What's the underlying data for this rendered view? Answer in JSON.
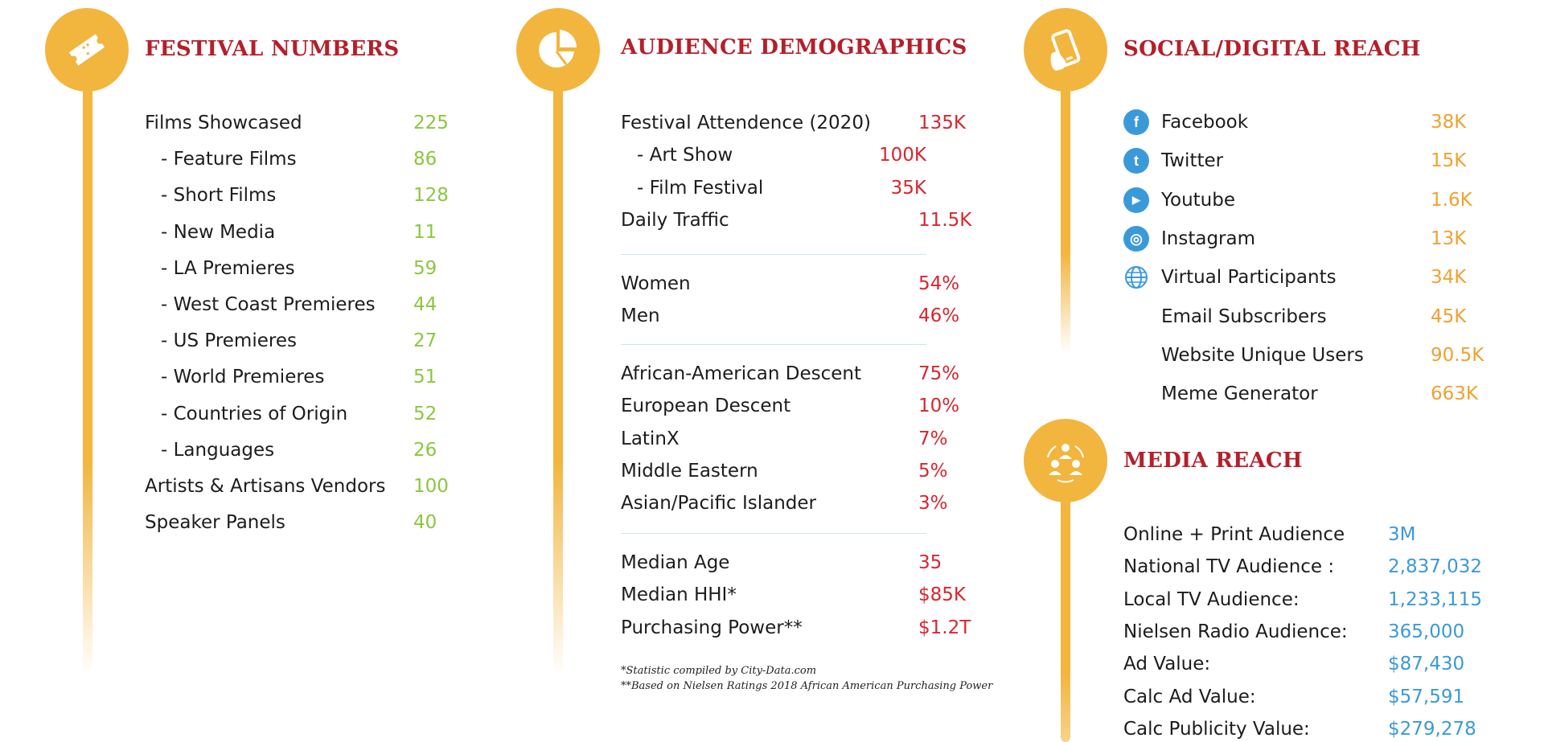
{
  "festival": {
    "title": "FESTIVAL NUMBERS",
    "rows": [
      {
        "label": "Films Showcased",
        "value": "225",
        "indent": false
      },
      {
        "label": "- Feature Films",
        "value": "86",
        "indent": true
      },
      {
        "label": "- Short Films",
        "value": "128",
        "indent": true
      },
      {
        "label": "- New Media",
        "value": "11",
        "indent": true
      },
      {
        "label": "- LA Premieres",
        "value": "59",
        "indent": true
      },
      {
        "label": "- West Coast Premieres",
        "value": "44",
        "indent": true
      },
      {
        "label": "- US Premieres",
        "value": "27",
        "indent": true
      },
      {
        "label": "- World Premieres",
        "value": "51",
        "indent": true
      },
      {
        "label": "- Countries of Origin",
        "value": "52",
        "indent": true
      },
      {
        "label": "- Languages",
        "value": "26",
        "indent": true
      },
      {
        "label": "Artists & Artisans Vendors",
        "value": "100",
        "indent": false
      },
      {
        "label": "Speaker Panels",
        "value": "40",
        "indent": false
      }
    ]
  },
  "audience": {
    "title": "AUDIENCE DEMOGRAPHICS",
    "groups": [
      [
        {
          "label": "Festival Attendence (2020)",
          "value": "135K",
          "indent": false
        },
        {
          "label": "- Art Show",
          "value": "100K",
          "indent": true
        },
        {
          "label": "- Film Festival",
          "value": "35K",
          "indent": true
        },
        {
          "label": "Daily Traffic",
          "value": "11.5K",
          "indent": false
        }
      ],
      [
        {
          "label": "Women",
          "value": "54%",
          "indent": false
        },
        {
          "label": "Men",
          "value": "46%",
          "indent": false
        }
      ],
      [
        {
          "label": "African-American Descent",
          "value": "75%",
          "indent": false
        },
        {
          "label": "European Descent",
          "value": "10%",
          "indent": false
        },
        {
          "label": "LatinX",
          "value": "7%",
          "indent": false
        },
        {
          "label": "Middle Eastern",
          "value": "5%",
          "indent": false
        },
        {
          "label": "Asian/Pacific Islander",
          "value": "3%",
          "indent": false
        }
      ],
      [
        {
          "label": "Median Age",
          "value": "35",
          "indent": false
        },
        {
          "label": "Median HHI*",
          "value": "$85K",
          "indent": false
        },
        {
          "label": "Purchasing Power**",
          "value": "$1.2T",
          "indent": false
        }
      ]
    ],
    "notes": [
      "*Statistic compiled by City-Data.com",
      "**Based on Nielsen Ratings 2018 African American Purchasing Power"
    ]
  },
  "social": {
    "title": "SOCIAL/DIGITAL REACH",
    "rows": [
      {
        "label": "Facebook",
        "value": "38K",
        "icon": "facebook-icon"
      },
      {
        "label": "Twitter",
        "value": "15K",
        "icon": "twitter-icon"
      },
      {
        "label": "Youtube",
        "value": "1.6K",
        "icon": "youtube-icon"
      },
      {
        "label": "Instagram",
        "value": "13K",
        "icon": "instagram-icon"
      },
      {
        "label": "Virtual Participants",
        "value": "34K",
        "icon": "globe-icon"
      },
      {
        "label": "Email Subscribers",
        "value": "45K",
        "icon": ""
      },
      {
        "label": "Website Unique Users",
        "value": "90.5K",
        "icon": ""
      },
      {
        "label": "Meme Generator",
        "value": "663K",
        "icon": ""
      }
    ]
  },
  "media": {
    "title": "MEDIA REACH",
    "rows": [
      {
        "label": "Online + Print Audience",
        "value": "3M"
      },
      {
        "label": "National TV Audience :",
        "value": "2,837,032"
      },
      {
        "label": "Local TV Audience:",
        "value": "1,233,115"
      },
      {
        "label": "Nielsen Radio Audience:",
        "value": "365,000"
      },
      {
        "label": "Ad Value:",
        "value": "$87,430"
      },
      {
        "label": "Calc Ad Value:",
        "value": "$57,591"
      },
      {
        "label": "Calc Publicity Value:",
        "value": "$279,278"
      }
    ]
  },
  "colors": {
    "accent_gold": "#f2b53e",
    "title_red": "#b4202a",
    "festival_value_green": "#8cc63f",
    "audience_value_red": "#d7262f",
    "social_value_orange": "#f0a130",
    "media_value_blue": "#3a9ad9"
  }
}
